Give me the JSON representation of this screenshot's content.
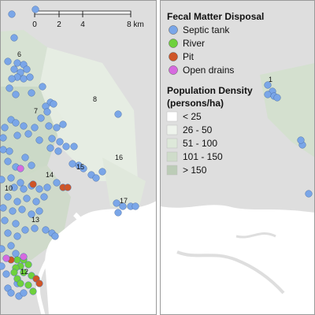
{
  "legend": {
    "disposal_title": "Fecal Matter Disposal",
    "disposal_items": [
      {
        "label": "Septic tank",
        "color": "#7aa6e8"
      },
      {
        "label": "River",
        "color": "#6fd13c"
      },
      {
        "label": "Pit",
        "color": "#cf5527"
      },
      {
        "label": "Open drains",
        "color": "#d66adf"
      }
    ],
    "density_title_line1": "Population Density",
    "density_title_line2": "(persons/ha)",
    "density_items": [
      {
        "label": "< 25",
        "color": "#ffffff"
      },
      {
        "label": "26 - 50",
        "color": "#eef3ec"
      },
      {
        "label": "51 - 100",
        "color": "#dde8d9"
      },
      {
        "label": "101 - 150",
        "color": "#cfdcca"
      },
      {
        "label": "> 150",
        "color": "#bcccb7"
      }
    ]
  },
  "scalebar": {
    "ticks": [
      "0",
      "2",
      "4",
      "8 km"
    ]
  },
  "zones": [
    "6",
    "7",
    "8",
    "10",
    "12",
    "13",
    "14",
    "15",
    "16",
    "17"
  ],
  "right_zone": "1",
  "colors": {
    "water": "#ffffff",
    "land": "#dcdcdc",
    "grid_edge": "#bdbdbd"
  }
}
